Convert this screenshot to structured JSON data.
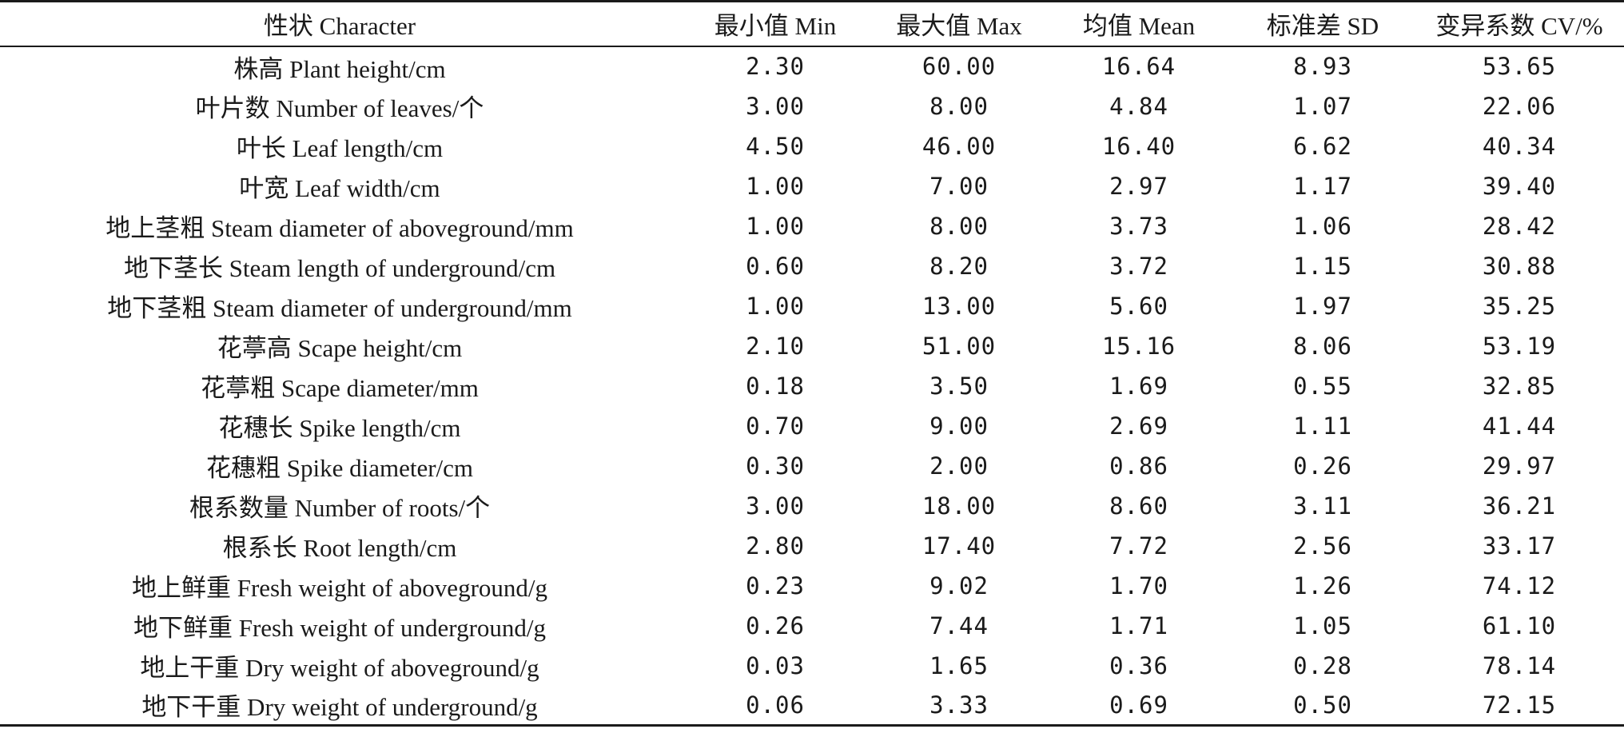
{
  "table": {
    "headers": [
      "性状 Character",
      "最小值 Min",
      "最大值 Max",
      "均值 Mean",
      "标准差 SD",
      "变异系数 CV/%"
    ],
    "rows": [
      [
        "株高 Plant height/cm",
        "2.30",
        "60.00",
        "16.64",
        "8.93",
        "53.65"
      ],
      [
        "叶片数 Number of leaves/个",
        "3.00",
        "8.00",
        "4.84",
        "1.07",
        "22.06"
      ],
      [
        "叶长 Leaf length/cm",
        "4.50",
        "46.00",
        "16.40",
        "6.62",
        "40.34"
      ],
      [
        "叶宽 Leaf width/cm",
        "1.00",
        "7.00",
        "2.97",
        "1.17",
        "39.40"
      ],
      [
        "地上茎粗 Steam diameter of aboveground/mm",
        "1.00",
        "8.00",
        "3.73",
        "1.06",
        "28.42"
      ],
      [
        "地下茎长 Steam length of underground/cm",
        "0.60",
        "8.20",
        "3.72",
        "1.15",
        "30.88"
      ],
      [
        "地下茎粗 Steam diameter of underground/mm",
        "1.00",
        "13.00",
        "5.60",
        "1.97",
        "35.25"
      ],
      [
        "花葶高 Scape height/cm",
        "2.10",
        "51.00",
        "15.16",
        "8.06",
        "53.19"
      ],
      [
        "花葶粗 Scape diameter/mm",
        "0.18",
        "3.50",
        "1.69",
        "0.55",
        "32.85"
      ],
      [
        "花穗长 Spike length/cm",
        "0.70",
        "9.00",
        "2.69",
        "1.11",
        "41.44"
      ],
      [
        "花穗粗 Spike diameter/cm",
        "0.30",
        "2.00",
        "0.86",
        "0.26",
        "29.97"
      ],
      [
        "根系数量 Number of roots/个",
        "3.00",
        "18.00",
        "8.60",
        "3.11",
        "36.21"
      ],
      [
        "根系长 Root length/cm",
        "2.80",
        "17.40",
        "7.72",
        "2.56",
        "33.17"
      ],
      [
        "地上鲜重 Fresh weight of aboveground/g",
        "0.23",
        "9.02",
        "1.70",
        "1.26",
        "74.12"
      ],
      [
        "地下鲜重 Fresh weight of underground/g",
        "0.26",
        "7.44",
        "1.71",
        "1.05",
        "61.10"
      ],
      [
        "地上干重 Dry weight of aboveground/g",
        "0.03",
        "1.65",
        "0.36",
        "0.28",
        "78.14"
      ],
      [
        "地下干重 Dry weight of underground/g",
        "0.06",
        "3.33",
        "0.69",
        "0.50",
        "72.15"
      ]
    ]
  }
}
